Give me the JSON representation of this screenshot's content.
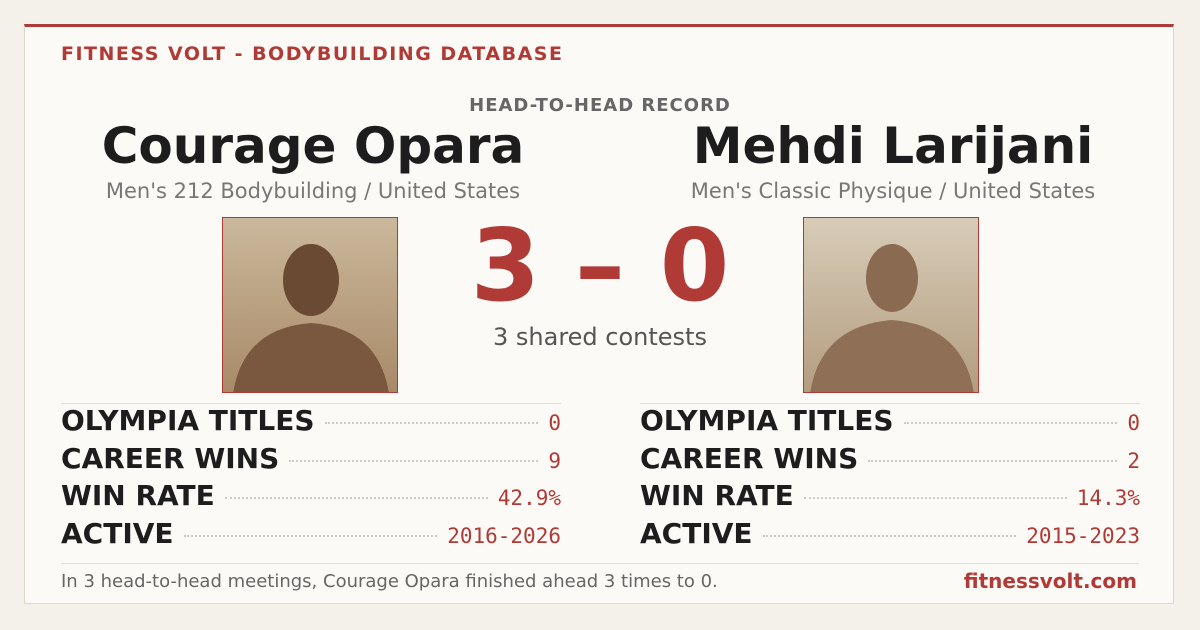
{
  "header": {
    "brand": "FITNESS VOLT - BODYBUILDING DATABASE",
    "section": "HEAD-TO-HEAD RECORD"
  },
  "athletes": [
    {
      "name": "Courage Opara",
      "division": "Men's 212 Bodybuilding / United States",
      "stats": [
        [
          "OLYMPIA TITLES",
          "0"
        ],
        [
          "CAREER WINS",
          "9"
        ],
        [
          "WIN RATE",
          "42.9%"
        ],
        [
          "ACTIVE",
          "2016-2026"
        ]
      ]
    },
    {
      "name": "Mehdi Larijani",
      "division": "Men's Classic Physique / United States",
      "stats": [
        [
          "OLYMPIA TITLES",
          "0"
        ],
        [
          "CAREER WINS",
          "2"
        ],
        [
          "WIN RATE",
          "14.3%"
        ],
        [
          "ACTIVE",
          "2015-2023"
        ]
      ]
    }
  ],
  "score": "3 – 0",
  "shared": "3 shared contests",
  "footer": {
    "summary": "In 3 head-to-head meetings, Courage Opara finished ahead 3 times to 0.",
    "site": "fitnessvolt.com"
  }
}
